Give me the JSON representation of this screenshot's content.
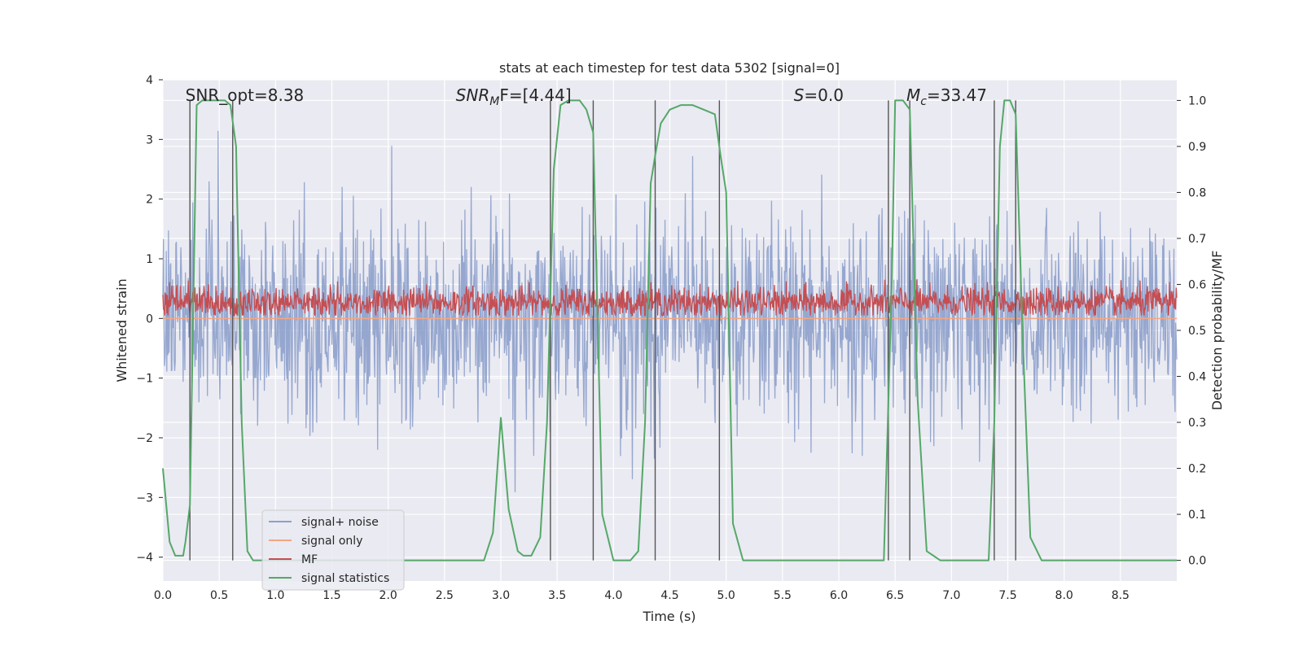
{
  "chart_data": {
    "type": "line",
    "title": "stats at each timestep for test data 5302 [signal=0]",
    "xlabel": "Time (s)",
    "ylabel": "Whitened strain",
    "ylabel_right": "Detection probability/MF",
    "xlim": [
      0.0,
      9.0
    ],
    "ylim": [
      -4.4,
      4.0
    ],
    "ylim_right": [
      -0.045,
      1.045
    ],
    "x_ticks": [
      "0.0",
      "0.5",
      "1.0",
      "1.5",
      "2.0",
      "2.5",
      "3.0",
      "3.5",
      "4.0",
      "4.5",
      "5.0",
      "5.5",
      "6.0",
      "6.5",
      "7.0",
      "7.5",
      "8.0",
      "8.5"
    ],
    "y_ticks": [
      "4",
      "3",
      "2",
      "1",
      "0",
      "−1",
      "−2",
      "−3",
      "−4"
    ],
    "y_ticks_right": [
      "1.0",
      "0.9",
      "0.8",
      "0.7",
      "0.6",
      "0.5",
      "0.4",
      "0.3",
      "0.2",
      "0.1",
      "0.0"
    ],
    "grid": true,
    "legend_position": "lower-left",
    "annotations": [
      {
        "text": "SNR_opt=8.38",
        "x": 0.2
      },
      {
        "text": "SNR",
        "sub": "M",
        "after": "F=[4.44]",
        "x": 2.6,
        "italic": true
      },
      {
        "text": "S",
        "after": "=0.0",
        "x": 5.6,
        "italic": true
      },
      {
        "text": "M",
        "sub": "c",
        "after": "=33.47",
        "x": 6.6,
        "italic": true
      }
    ],
    "vertical_lines": [
      0.24,
      0.62,
      3.44,
      3.82,
      4.37,
      4.94,
      6.44,
      6.63,
      7.38,
      7.57
    ],
    "series": [
      {
        "name": "signal+ noise",
        "color": "#8da0cb",
        "axis": "left",
        "description_stats": {
          "typical_range": [
            -1.7,
            1.4
          ],
          "peak_range": [
            -3.9,
            3.6
          ],
          "num_samples": 1800
        }
      },
      {
        "name": "signal only",
        "color": "#f4a582",
        "axis": "left",
        "x": [
          0.0,
          9.0
        ],
        "y": [
          0.0,
          0.0
        ]
      },
      {
        "name": "MF",
        "color": "#c44e52",
        "axis": "left",
        "description_stats": {
          "center": 0.27,
          "typical_range": [
            0.05,
            0.65
          ],
          "num_samples": 1800
        }
      },
      {
        "name": "signal statistics",
        "color": "#55a868",
        "axis": "right",
        "x": [
          0.0,
          0.06,
          0.11,
          0.18,
          0.2,
          0.24,
          0.3,
          0.35,
          0.45,
          0.55,
          0.6,
          0.65,
          0.7,
          0.75,
          0.8,
          0.9,
          1.0,
          1.5,
          2.0,
          2.5,
          2.85,
          2.93,
          3.0,
          3.07,
          3.15,
          3.2,
          3.27,
          3.35,
          3.41,
          3.47,
          3.53,
          3.6,
          3.7,
          3.76,
          3.82,
          3.9,
          4.0,
          4.15,
          4.22,
          4.28,
          4.33,
          4.37,
          4.42,
          4.5,
          4.6,
          4.7,
          4.8,
          4.9,
          4.95,
          5.0,
          5.06,
          5.15,
          5.3,
          5.6,
          6.0,
          6.4,
          6.47,
          6.5,
          6.57,
          6.63,
          6.7,
          6.78,
          6.9,
          7.1,
          7.33,
          7.38,
          7.43,
          7.47,
          7.52,
          7.57,
          7.63,
          7.7,
          7.8,
          8.0,
          8.5,
          9.0
        ],
        "y": [
          0.2,
          0.04,
          0.01,
          0.01,
          0.04,
          0.12,
          0.99,
          1.0,
          1.0,
          1.0,
          0.99,
          0.9,
          0.3,
          0.02,
          0.0,
          0.0,
          0.0,
          0.0,
          0.0,
          0.0,
          0.0,
          0.06,
          0.31,
          0.11,
          0.02,
          0.01,
          0.01,
          0.05,
          0.3,
          0.85,
          0.99,
          1.0,
          1.0,
          0.98,
          0.93,
          0.1,
          0.0,
          0.0,
          0.02,
          0.3,
          0.82,
          0.88,
          0.95,
          0.98,
          0.99,
          0.99,
          0.98,
          0.97,
          0.88,
          0.8,
          0.08,
          0.0,
          0.0,
          0.0,
          0.0,
          0.0,
          0.6,
          1.0,
          1.0,
          0.98,
          0.35,
          0.02,
          0.0,
          0.0,
          0.0,
          0.3,
          0.9,
          1.0,
          1.0,
          0.97,
          0.5,
          0.05,
          0.0,
          0.0,
          0.0,
          0.0
        ]
      }
    ]
  }
}
